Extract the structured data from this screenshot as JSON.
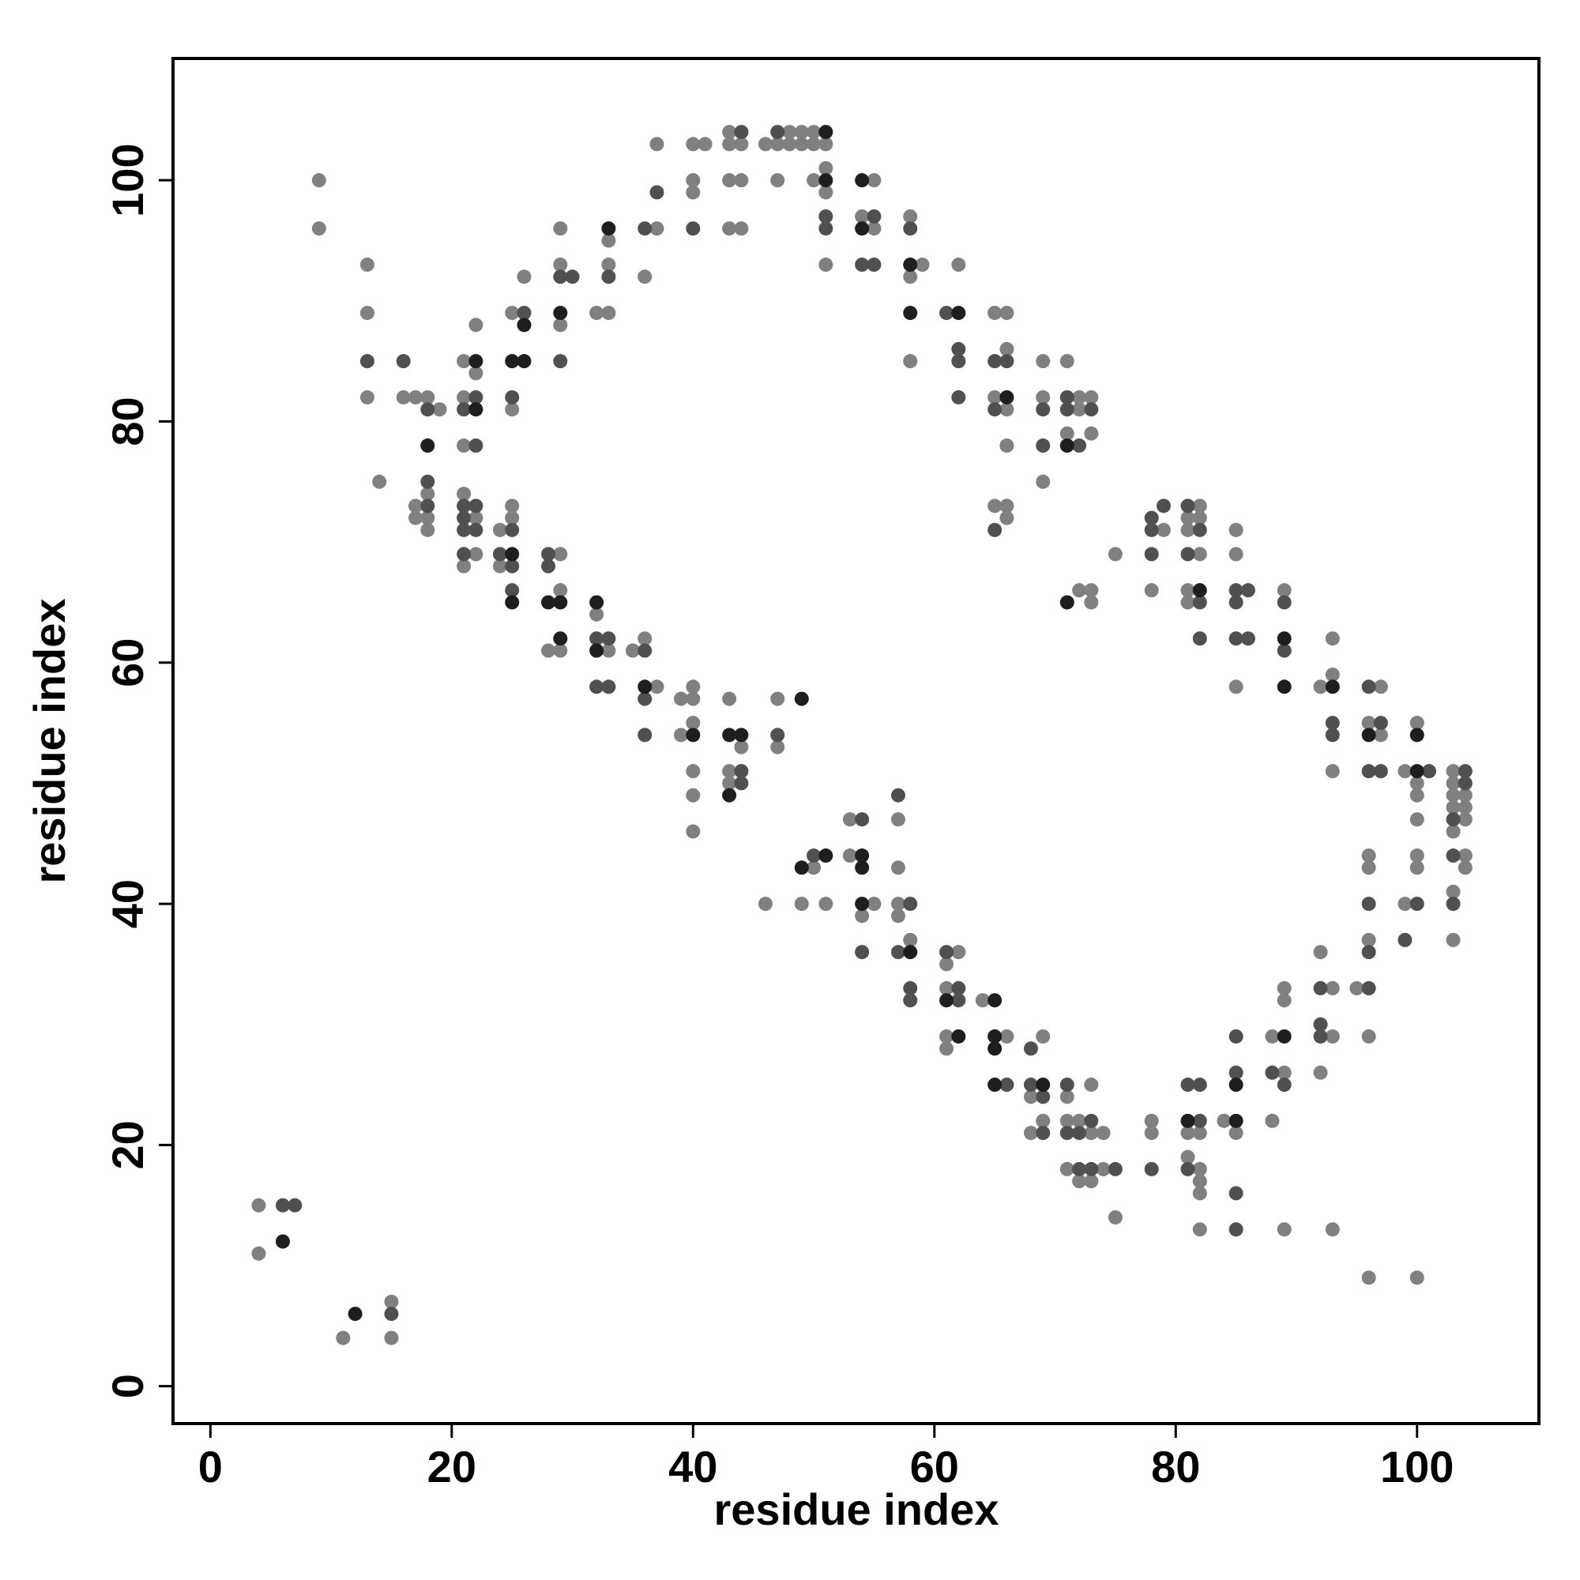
{
  "chart_data": {
    "type": "scatter",
    "x_label": "residue index",
    "y_label": "residue index",
    "xlim": [
      -3.1,
      110.1
    ],
    "ylim": [
      -3.1,
      110.1
    ],
    "xticks": [
      0,
      20,
      40,
      60,
      80,
      100
    ],
    "yticks": [
      0,
      20,
      40,
      60,
      80,
      100
    ],
    "grid": false,
    "series": [
      {
        "color": "#808080",
        "x": [
          4,
          4,
          9,
          9,
          11,
          13,
          13,
          13,
          14,
          15,
          15,
          16,
          17,
          17,
          17,
          18,
          18,
          18,
          18,
          19,
          21,
          21,
          21,
          21,
          21,
          22,
          22,
          22,
          22,
          24,
          24,
          25,
          25,
          25,
          25,
          26,
          28,
          29,
          29,
          29,
          29,
          29,
          29,
          32,
          32,
          33,
          33,
          33,
          33,
          35,
          36,
          36,
          37,
          37,
          37,
          39,
          39,
          40,
          40,
          40,
          40,
          40,
          40,
          40,
          40,
          40,
          41,
          43,
          43,
          43,
          43,
          43,
          43,
          43,
          44,
          44,
          44,
          44,
          46,
          46,
          47,
          47,
          47,
          47,
          48,
          48,
          49,
          49,
          49,
          50,
          50,
          50,
          50,
          51,
          51,
          51,
          51,
          51,
          53,
          53,
          54,
          54,
          55,
          55,
          55,
          57,
          57,
          57,
          57,
          58,
          58,
          58,
          58,
          59,
          61,
          61,
          61,
          61,
          62,
          62,
          64,
          65,
          65,
          65,
          66,
          66,
          66,
          66,
          66,
          66,
          66,
          68,
          68,
          69,
          69,
          69,
          69,
          69,
          71,
          71,
          71,
          71,
          71,
          72,
          72,
          72,
          72,
          72,
          73,
          73,
          73,
          73,
          73,
          73,
          73,
          74,
          74,
          75,
          75,
          78,
          78,
          78,
          79,
          81,
          81,
          81,
          81,
          81,
          81,
          82,
          82,
          82,
          82,
          82,
          82,
          82,
          82,
          84,
          85,
          85,
          85,
          85,
          88,
          88,
          89,
          89,
          89,
          89,
          89,
          92,
          92,
          92,
          93,
          93,
          93,
          93,
          93,
          93,
          95,
          96,
          96,
          96,
          96,
          96,
          96,
          97,
          97,
          99,
          99,
          100,
          100,
          100,
          100,
          100,
          100,
          100,
          103,
          103,
          103,
          103,
          103,
          103,
          103,
          104,
          104,
          104,
          104,
          104
        ],
        "y": [
          15,
          11,
          100,
          96,
          4,
          93,
          89,
          82,
          75,
          7,
          4,
          82,
          82,
          73,
          72,
          82,
          74,
          72,
          71,
          81,
          85,
          82,
          78,
          74,
          68,
          88,
          84,
          72,
          69,
          71,
          68,
          89,
          81,
          73,
          72,
          92,
          61,
          96,
          93,
          88,
          69,
          66,
          61,
          89,
          64,
          95,
          93,
          89,
          61,
          61,
          92,
          62,
          103,
          96,
          58,
          57,
          54,
          103,
          100,
          99,
          58,
          57,
          55,
          51,
          49,
          46,
          103,
          104,
          103,
          100,
          96,
          57,
          51,
          50,
          103,
          100,
          96,
          53,
          103,
          40,
          103,
          100,
          57,
          53,
          104,
          103,
          104,
          103,
          40,
          104,
          103,
          100,
          43,
          103,
          101,
          99,
          93,
          40,
          47,
          44,
          97,
          39,
          100,
          96,
          40,
          47,
          43,
          40,
          39,
          97,
          92,
          85,
          37,
          93,
          35,
          33,
          29,
          28,
          93,
          36,
          32,
          89,
          82,
          73,
          89,
          86,
          81,
          78,
          73,
          72,
          29,
          24,
          21,
          85,
          82,
          75,
          29,
          22,
          85,
          79,
          24,
          22,
          18,
          82,
          81,
          66,
          22,
          17,
          82,
          79,
          66,
          65,
          25,
          21,
          17,
          21,
          18,
          69,
          14,
          66,
          22,
          21,
          71,
          72,
          71,
          66,
          65,
          21,
          19,
          73,
          72,
          69,
          21,
          18,
          17,
          16,
          13,
          22,
          71,
          69,
          58,
          21,
          29,
          22,
          66,
          33,
          32,
          26,
          13,
          58,
          36,
          26,
          62,
          59,
          51,
          33,
          29,
          13,
          33,
          55,
          44,
          43,
          37,
          29,
          9,
          58,
          54,
          51,
          40,
          55,
          50,
          49,
          47,
          44,
          43,
          9,
          51,
          50,
          49,
          48,
          46,
          41,
          37,
          49,
          48,
          47,
          44,
          43
        ]
      },
      {
        "color": "#505050",
        "x": [
          6,
          7,
          13,
          15,
          16,
          18,
          18,
          18,
          21,
          21,
          21,
          21,
          21,
          22,
          22,
          22,
          22,
          24,
          25,
          25,
          25,
          25,
          26,
          28,
          28,
          29,
          29,
          30,
          32,
          32,
          33,
          33,
          33,
          36,
          36,
          36,
          36,
          37,
          40,
          44,
          44,
          44,
          47,
          47,
          50,
          51,
          51,
          54,
          54,
          54,
          55,
          55,
          57,
          57,
          58,
          58,
          58,
          58,
          61,
          61,
          62,
          62,
          62,
          62,
          62,
          65,
          65,
          65,
          66,
          66,
          68,
          68,
          69,
          69,
          69,
          69,
          71,
          71,
          71,
          71,
          72,
          72,
          72,
          73,
          73,
          73,
          75,
          78,
          78,
          78,
          78,
          79,
          81,
          81,
          81,
          81,
          82,
          82,
          82,
          82,
          82,
          85,
          85,
          85,
          85,
          85,
          85,
          85,
          86,
          86,
          88,
          89,
          89,
          89,
          92,
          92,
          92,
          93,
          93,
          96,
          96,
          96,
          96,
          96,
          97,
          97,
          99,
          100,
          101,
          103,
          103,
          103,
          104,
          104
        ],
        "y": [
          15,
          15,
          85,
          6,
          85,
          81,
          75,
          73,
          81,
          73,
          72,
          71,
          69,
          82,
          78,
          73,
          71,
          69,
          82,
          71,
          68,
          66,
          89,
          69,
          68,
          92,
          85,
          92,
          62,
          58,
          92,
          62,
          58,
          96,
          61,
          57,
          54,
          99,
          96,
          104,
          51,
          50,
          104,
          54,
          44,
          97,
          96,
          93,
          47,
          36,
          97,
          93,
          49,
          36,
          96,
          40,
          33,
          32,
          89,
          36,
          86,
          85,
          82,
          33,
          32,
          85,
          81,
          71,
          85,
          25,
          28,
          25,
          81,
          78,
          24,
          21,
          82,
          81,
          25,
          21,
          78,
          21,
          18,
          81,
          22,
          18,
          18,
          72,
          71,
          69,
          18,
          73,
          73,
          69,
          25,
          18,
          71,
          65,
          62,
          25,
          22,
          66,
          65,
          62,
          29,
          26,
          16,
          13,
          66,
          62,
          26,
          65,
          61,
          25,
          33,
          30,
          29,
          55,
          54,
          58,
          51,
          40,
          36,
          33,
          55,
          51,
          37,
          40,
          51,
          47,
          44,
          40,
          51,
          50
        ]
      },
      {
        "color": "#1e1e1e",
        "x": [
          6,
          12,
          18,
          22,
          22,
          25,
          25,
          25,
          26,
          26,
          28,
          29,
          29,
          29,
          32,
          32,
          33,
          36,
          40,
          43,
          43,
          44,
          49,
          49,
          51,
          51,
          51,
          54,
          54,
          54,
          54,
          54,
          58,
          58,
          58,
          61,
          62,
          62,
          65,
          65,
          65,
          65,
          66,
          69,
          71,
          71,
          81,
          82,
          85,
          85,
          89,
          89,
          89,
          93,
          96,
          100,
          100
        ],
        "y": [
          12,
          6,
          78,
          85,
          81,
          85,
          69,
          65,
          88,
          85,
          65,
          89,
          65,
          62,
          65,
          61,
          96,
          58,
          54,
          54,
          49,
          54,
          57,
          43,
          104,
          100,
          44,
          100,
          96,
          44,
          43,
          40,
          93,
          89,
          36,
          32,
          89,
          29,
          32,
          29,
          28,
          25,
          82,
          25,
          78,
          65,
          22,
          66,
          25,
          22,
          62,
          58,
          29,
          58,
          54,
          54,
          51
        ]
      }
    ]
  }
}
